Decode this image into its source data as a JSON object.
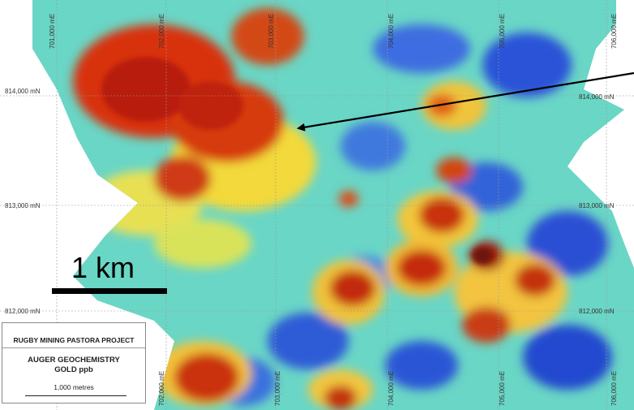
{
  "map": {
    "northing_labels": [
      {
        "text": "814,000 mN",
        "side": "left"
      },
      {
        "text": "814,000 mN",
        "side": "right"
      },
      {
        "text": "813,000 mN",
        "side": "left"
      },
      {
        "text": "813,000 mN",
        "side": "right"
      },
      {
        "text": "812,000 mN",
        "side": "left"
      },
      {
        "text": "812,000 mN",
        "side": "right"
      }
    ],
    "easting_labels_top": [
      "701,000 mE",
      "702,000 mE",
      "703,000 mE",
      "704,000 mE",
      "705,000 mE",
      "706,000 mE"
    ],
    "easting_labels_bottom": [
      "702,000 mE",
      "703,000 mE",
      "704,000 mE",
      "705,000 mE",
      "706,000 mE"
    ],
    "colors": {
      "high": "#c0200c",
      "mid_high": "#f08c1e",
      "mid": "#f5e640",
      "mid_low": "#5ed2c8",
      "low": "#1a3fcf",
      "background": "#ffffff"
    }
  },
  "scale": {
    "label": "1 km"
  },
  "legend": {
    "project": "RUGBY MINING PASTORA PROJECT",
    "title": "AUGER GEOCHEMISTRY",
    "subtitle": "GOLD ppb",
    "scale_text": "1,000 metres"
  },
  "annotation": {
    "arrow": "pointer-arrow"
  }
}
